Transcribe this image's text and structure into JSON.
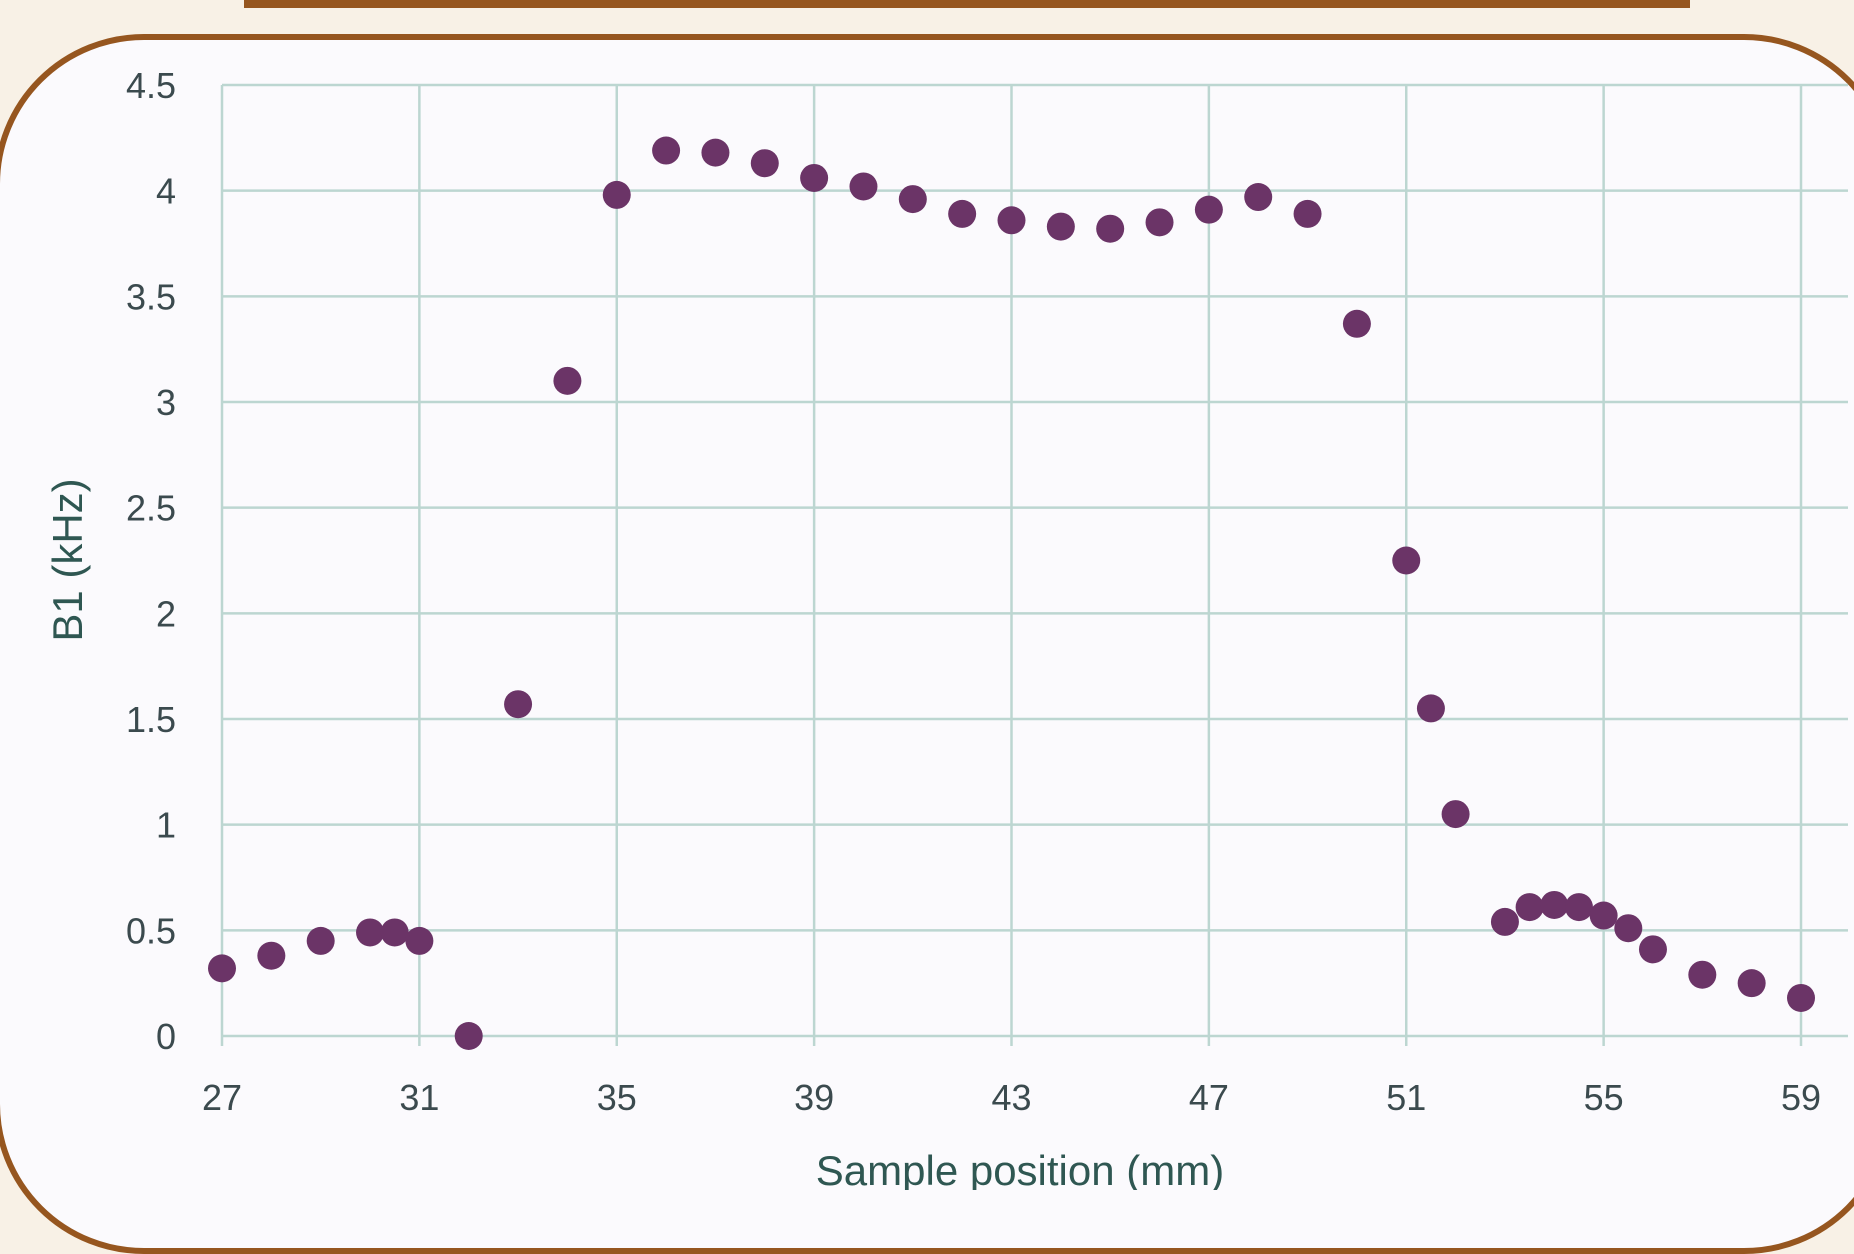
{
  "colors": {
    "background": "#f8f1e6",
    "frame": "#96561f",
    "plot_background": "#fbfafd",
    "grid": "#bcd6d1",
    "marker": "#6b3467",
    "axis_title": "#2f5752",
    "tick_text": "#3b4a4e"
  },
  "chart_data": {
    "type": "scatter",
    "title": "",
    "xlabel": "Sample position (mm)",
    "ylabel": "B1 (kHz)",
    "xlim": [
      27,
      59
    ],
    "ylim": [
      0,
      4.5
    ],
    "xticks": [
      "27",
      "31",
      "35",
      "39",
      "43",
      "47",
      "51",
      "55",
      "59"
    ],
    "yticks": [
      "0",
      "0.5",
      "1",
      "1.5",
      "2",
      "2.5",
      "3",
      "3.5",
      "4",
      "4.5"
    ],
    "grid": true,
    "legend": "none",
    "series": [
      {
        "marker": "circle",
        "points": [
          [
            27,
            0.32
          ],
          [
            28,
            0.38
          ],
          [
            29,
            0.45
          ],
          [
            30,
            0.49
          ],
          [
            30.5,
            0.49
          ],
          [
            31,
            0.45
          ],
          [
            32,
            0.0
          ],
          [
            33,
            1.57
          ],
          [
            34,
            3.1
          ],
          [
            35,
            3.98
          ],
          [
            36,
            4.19
          ],
          [
            37,
            4.18
          ],
          [
            38,
            4.13
          ],
          [
            39,
            4.06
          ],
          [
            40,
            4.02
          ],
          [
            41,
            3.96
          ],
          [
            42,
            3.89
          ],
          [
            43,
            3.86
          ],
          [
            44,
            3.83
          ],
          [
            45,
            3.82
          ],
          [
            46,
            3.85
          ],
          [
            47,
            3.91
          ],
          [
            48,
            3.97
          ],
          [
            49,
            3.89
          ],
          [
            50,
            3.37
          ],
          [
            51,
            2.25
          ],
          [
            51.5,
            1.55
          ],
          [
            52,
            1.05
          ],
          [
            53,
            0.54
          ],
          [
            53.5,
            0.61
          ],
          [
            54,
            0.62
          ],
          [
            54.5,
            0.61
          ],
          [
            55,
            0.57
          ],
          [
            55.5,
            0.51
          ],
          [
            56,
            0.41
          ],
          [
            57,
            0.29
          ],
          [
            58,
            0.25
          ],
          [
            59,
            0.18
          ]
        ]
      }
    ]
  }
}
